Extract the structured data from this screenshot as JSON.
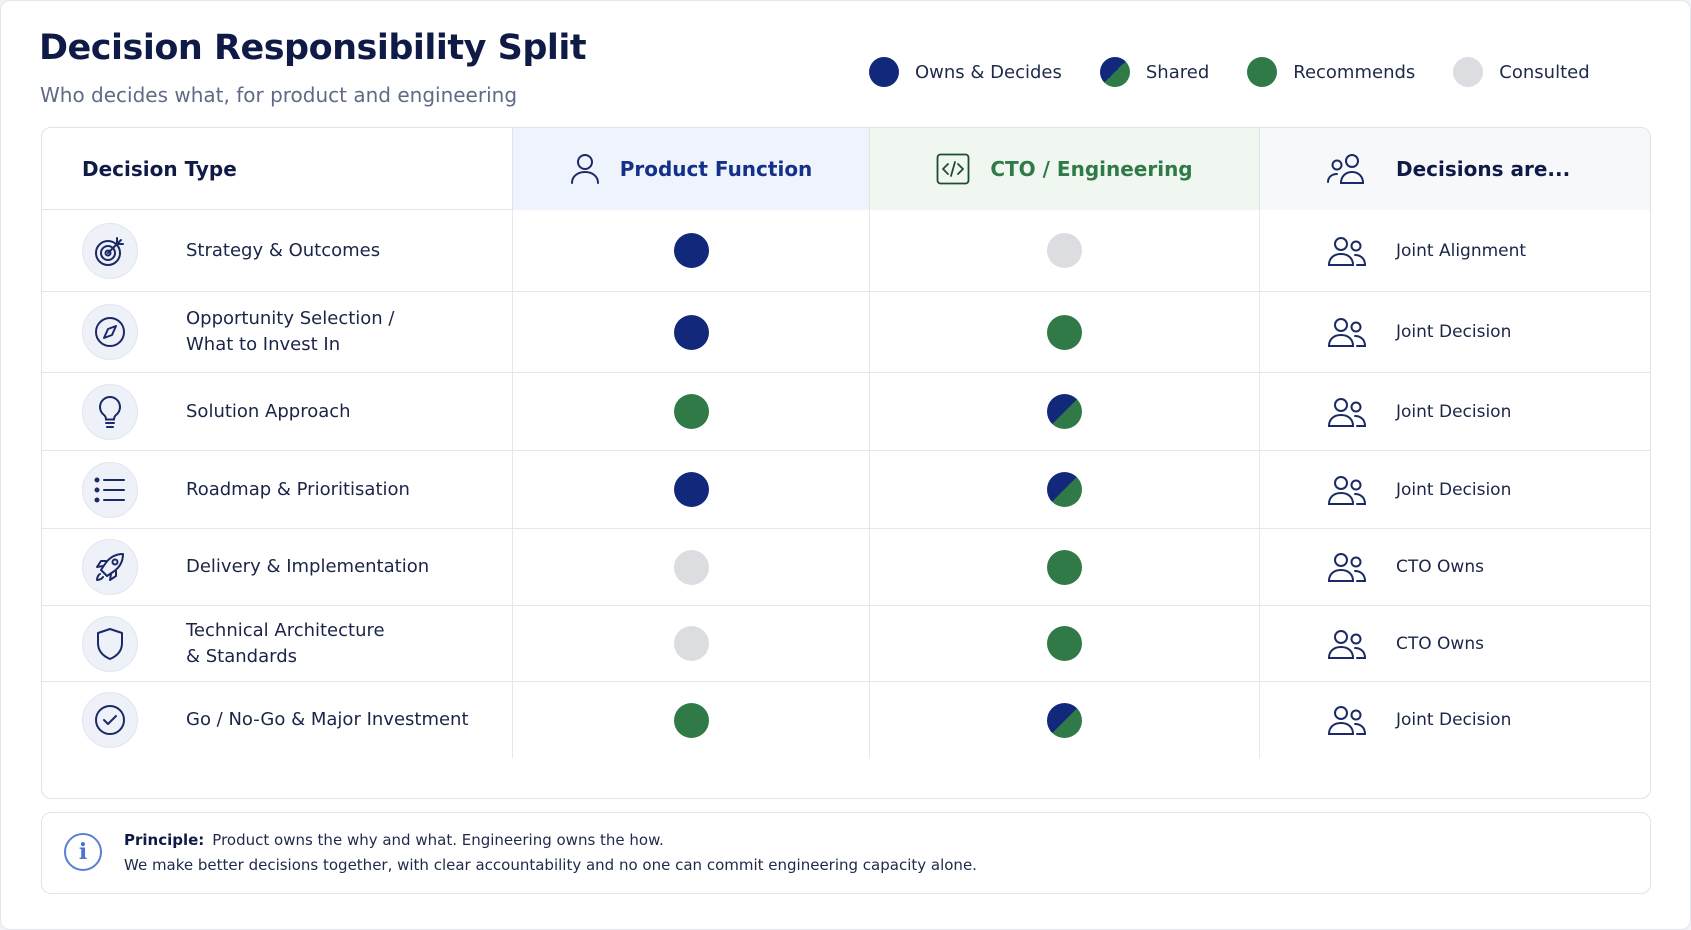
{
  "title": "Decision Responsibility Split",
  "subtitle": "Who decides what, for product and engineering",
  "legend": [
    {
      "label": "Owns & Decides",
      "key": "owns",
      "color": "#12287a"
    },
    {
      "label": "Shared",
      "key": "shared",
      "color": "#12287a/#2f7a46"
    },
    {
      "label": "Recommends",
      "key": "recommends",
      "color": "#2f7a46"
    },
    {
      "label": "Consulted",
      "key": "consulted",
      "color": "#dcdde1"
    }
  ],
  "headers": {
    "decision_type": "Decision Type",
    "product": "Product Function",
    "cto": "CTO / Engineering",
    "decisions": "Decisions are..."
  },
  "header_icons": {
    "product": "person-icon",
    "cto": "code-icon",
    "decisions": "people-icon"
  },
  "rows": [
    {
      "label": "Strategy & Outcomes",
      "icon": "target-icon",
      "product": "owns",
      "cto": "consulted",
      "outcome": "Joint Alignment"
    },
    {
      "label": "Opportunity Selection /\nWhat to Invest In",
      "icon": "compass-icon",
      "product": "owns",
      "cto": "recommends",
      "outcome": "Joint Decision"
    },
    {
      "label": "Solution Approach",
      "icon": "lightbulb-icon",
      "product": "recommends",
      "cto": "shared",
      "outcome": "Joint Decision"
    },
    {
      "label": "Roadmap & Prioritisation",
      "icon": "list-icon",
      "product": "owns",
      "cto": "shared",
      "outcome": "Joint Decision"
    },
    {
      "label": "Delivery & Implementation",
      "icon": "rocket-icon",
      "product": "consulted",
      "cto": "recommends",
      "outcome": "CTO Owns"
    },
    {
      "label": "Technical Architecture\n& Standards",
      "icon": "shield-icon",
      "product": "consulted",
      "cto": "recommends",
      "outcome": "CTO Owns"
    },
    {
      "label": "Go / No-Go & Major Investment",
      "icon": "check-circle-icon",
      "product": "recommends",
      "cto": "shared",
      "outcome": "Joint Decision"
    }
  ],
  "note": {
    "heading": "Principle:",
    "line1": "Product owns the why and what. Engineering owns the how.",
    "line2": "We make better decisions together, with clear accountability and no one can commit engineering capacity alone."
  }
}
